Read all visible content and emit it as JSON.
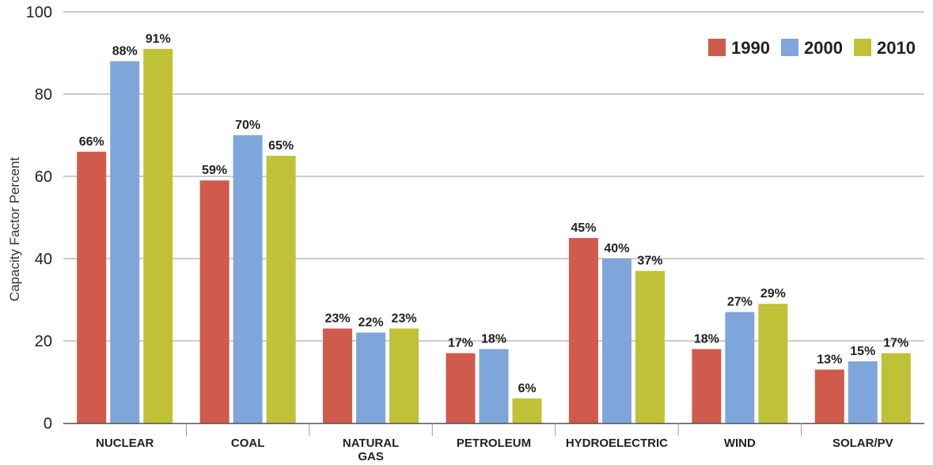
{
  "chart_data": {
    "type": "bar",
    "title": "",
    "xlabel": "",
    "ylabel": "Capacity Factor Percent",
    "ylim": [
      0,
      100
    ],
    "yticks": [
      0,
      20,
      40,
      60,
      80,
      100
    ],
    "grid": true,
    "legend_position": "top-right",
    "categories": [
      [
        "NUCLEAR"
      ],
      [
        "COAL"
      ],
      [
        "NATURAL",
        "GAS"
      ],
      [
        "PETROLEUM"
      ],
      [
        "HYDROELECTRIC"
      ],
      [
        "WIND"
      ],
      [
        "SOLAR/PV"
      ]
    ],
    "series": [
      {
        "name": "1990",
        "color": "#d05a4c",
        "values": [
          66,
          59,
          23,
          17,
          45,
          18,
          13
        ],
        "labels": [
          "66%",
          "59%",
          "23%",
          "17%",
          "45%",
          "18%",
          "13%"
        ]
      },
      {
        "name": "2000",
        "color": "#7ea6da",
        "values": [
          88,
          70,
          22,
          18,
          40,
          27,
          15
        ],
        "labels": [
          "88%",
          "70%",
          "22%",
          "18%",
          "40%",
          "27%",
          "15%"
        ]
      },
      {
        "name": "2010",
        "color": "#bfc236",
        "values": [
          91,
          65,
          23,
          6,
          37,
          29,
          17
        ],
        "labels": [
          "91%",
          "65%",
          "23%",
          "6%",
          "37%",
          "29%",
          "17%"
        ]
      }
    ]
  }
}
